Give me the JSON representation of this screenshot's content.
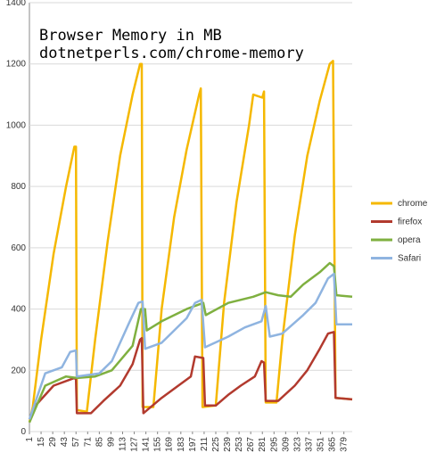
{
  "chart_data": {
    "type": "line",
    "title": "Browser Memory in MB",
    "subtitle": "dotnetperls.com/chrome-memory",
    "xlim": [
      1,
      389
    ],
    "ylim": [
      0,
      1400
    ],
    "xticks": [
      1,
      15,
      29,
      43,
      57,
      71,
      85,
      99,
      113,
      127,
      141,
      155,
      169,
      183,
      197,
      211,
      225,
      239,
      253,
      267,
      281,
      295,
      309,
      323,
      337,
      351,
      365,
      379
    ],
    "yticks": [
      0,
      200,
      400,
      600,
      800,
      1000,
      1200,
      1400
    ],
    "grid": true,
    "legend": "right",
    "series": [
      {
        "name": "chrome",
        "color": "#f5b800",
        "x": [
          1,
          5,
          15,
          30,
          45,
          55,
          57,
          58,
          70,
          80,
          95,
          110,
          125,
          134,
          136,
          137,
          150,
          160,
          175,
          190,
          205,
          207,
          209,
          225,
          235,
          250,
          265,
          270,
          281,
          283,
          285,
          298,
          305,
          320,
          335,
          350,
          362,
          366,
          369,
          389
        ],
        "values": [
          30,
          80,
          300,
          580,
          800,
          930,
          930,
          70,
          65,
          300,
          620,
          900,
          1100,
          1200,
          1200,
          80,
          80,
          400,
          700,
          920,
          1100,
          1120,
          80,
          85,
          420,
          750,
          1000,
          1100,
          1090,
          1110,
          95,
          95,
          300,
          640,
          900,
          1080,
          1200,
          1210,
          110,
          105
        ]
      },
      {
        "name": "firefox",
        "color": "#b23a2e",
        "x": [
          1,
          10,
          30,
          55,
          57,
          58,
          75,
          90,
          110,
          125,
          134,
          136,
          138,
          160,
          180,
          195,
          200,
          210,
          212,
          225,
          240,
          255,
          272,
          280,
          283,
          285,
          300,
          320,
          335,
          350,
          360,
          367,
          369,
          389
        ],
        "values": [
          40,
          90,
          150,
          175,
          170,
          60,
          60,
          100,
          150,
          220,
          300,
          305,
          60,
          110,
          150,
          180,
          245,
          240,
          85,
          85,
          120,
          150,
          180,
          230,
          225,
          100,
          100,
          150,
          200,
          270,
          320,
          325,
          110,
          105
        ]
      },
      {
        "name": "opera",
        "color": "#7fb040",
        "x": [
          1,
          20,
          45,
          58,
          80,
          100,
          125,
          135,
          140,
          142,
          160,
          190,
          210,
          213,
          240,
          270,
          285,
          300,
          315,
          330,
          350,
          362,
          367,
          370,
          389
        ],
        "values": [
          30,
          150,
          180,
          175,
          180,
          200,
          280,
          400,
          400,
          330,
          360,
          400,
          420,
          380,
          420,
          440,
          455,
          445,
          440,
          480,
          520,
          550,
          540,
          445,
          440
        ]
      },
      {
        "name": "Safari",
        "color": "#8fb4e0",
        "x": [
          1,
          20,
          40,
          50,
          57,
          58,
          85,
          100,
          120,
          132,
          137,
          140,
          160,
          190,
          200,
          208,
          212,
          240,
          260,
          280,
          285,
          290,
          305,
          330,
          345,
          360,
          367,
          370,
          389
        ],
        "values": [
          40,
          190,
          210,
          260,
          265,
          180,
          190,
          230,
          350,
          420,
          425,
          270,
          290,
          370,
          420,
          430,
          275,
          310,
          340,
          360,
          410,
          310,
          320,
          380,
          420,
          500,
          515,
          350,
          350
        ]
      }
    ]
  }
}
